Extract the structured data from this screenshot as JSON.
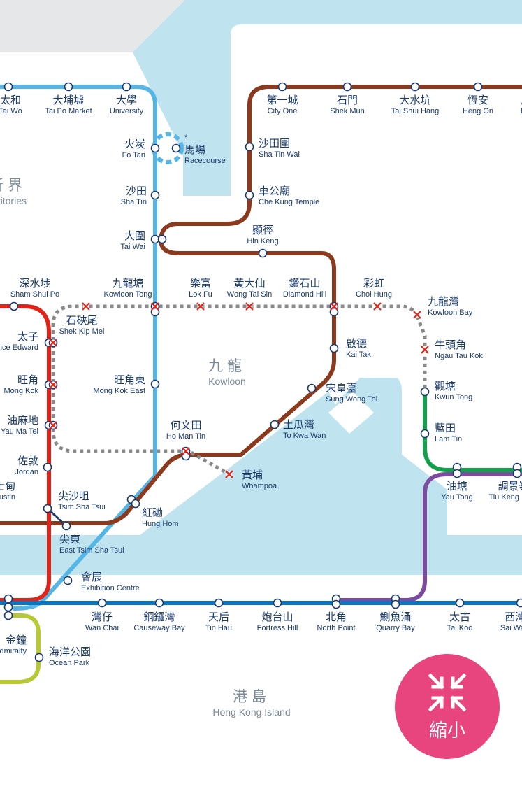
{
  "map_title": "",
  "colors": {
    "water": "#bfe4ef",
    "land_gray": "#e6e7e8",
    "east_rail": "#55b6e6",
    "tuen_ma": "#8b3a1e",
    "tsuen_wan": "#e2231a",
    "island": "#0a76c0",
    "kwun_tong": "#13a14b",
    "tko": "#7d4aa0",
    "south_island": "#b6c935",
    "closed_dotted": "#8a8a8a",
    "closed_mark": "#e2231a",
    "button": "#e8457f"
  },
  "districts": [
    {
      "zh": "九龍",
      "en": "Kowloon"
    },
    {
      "zh": "港島",
      "en": "Hong Kong Island"
    },
    {
      "zh": "新界",
      "en": "New Territories"
    }
  ],
  "stations": [
    {
      "zh": "太和",
      "en": "Tai Wo"
    },
    {
      "zh": "大埔墟",
      "en": "Tai Po Market"
    },
    {
      "zh": "大學",
      "en": "University"
    },
    {
      "zh": "火炭",
      "en": "Fo Tan"
    },
    {
      "zh": "馬場",
      "en": "Racecourse",
      "note": "*"
    },
    {
      "zh": "沙田",
      "en": "Sha Tin"
    },
    {
      "zh": "大圍",
      "en": "Tai Wai"
    },
    {
      "zh": "第一城",
      "en": "City One"
    },
    {
      "zh": "石門",
      "en": "Shek Mun"
    },
    {
      "zh": "大水坑",
      "en": "Tai Shui Hang"
    },
    {
      "zh": "恆安",
      "en": "Heng On"
    },
    {
      "zh": "沙田圍",
      "en": "Sha Tin Wai"
    },
    {
      "zh": "車公廟",
      "en": "Che Kung Temple"
    },
    {
      "zh": "顯徑",
      "en": "Hin Keng"
    },
    {
      "zh": "九龍塘",
      "en": "Kowloon Tong"
    },
    {
      "zh": "樂富",
      "en": "Lok Fu"
    },
    {
      "zh": "黃大仙",
      "en": "Wong Tai Sin"
    },
    {
      "zh": "鑽石山",
      "en": "Diamond Hill"
    },
    {
      "zh": "彩虹",
      "en": "Choi Hung"
    },
    {
      "zh": "九龍灣",
      "en": "Kowloon Bay"
    },
    {
      "zh": "牛頭角",
      "en": "Ngau Tau Kok"
    },
    {
      "zh": "觀塘",
      "en": "Kwun Tong"
    },
    {
      "zh": "藍田",
      "en": "Lam Tin"
    },
    {
      "zh": "油塘",
      "en": "Yau Tong"
    },
    {
      "zh": "調景嶺",
      "en": "Tiu Keng Leng"
    },
    {
      "zh": "啟德",
      "en": "Kai Tak"
    },
    {
      "zh": "宋皇臺",
      "en": "Sung Wong Toi"
    },
    {
      "zh": "土瓜灣",
      "en": "To Kwa Wan"
    },
    {
      "zh": "何文田",
      "en": "Ho Man Tin"
    },
    {
      "zh": "黃埔",
      "en": "Whampoa"
    },
    {
      "zh": "紅磡",
      "en": "Hung Hom"
    },
    {
      "zh": "尖東",
      "en": "East Tsim Sha Tsui"
    },
    {
      "zh": "會展",
      "en": "Exhibition Centre"
    },
    {
      "zh": "深水埗",
      "en": "Sham Shui Po"
    },
    {
      "zh": "太子",
      "en": "Prince Edward"
    },
    {
      "zh": "旺角",
      "en": "Mong Kok"
    },
    {
      "zh": "油麻地",
      "en": "Yau Ma Tei"
    },
    {
      "zh": "佐敦",
      "en": "Jordan"
    },
    {
      "zh": "尖沙咀",
      "en": "Tsim Sha Tsui"
    },
    {
      "zh": "石硤尾",
      "en": "Shek Kip Mei"
    },
    {
      "zh": "旺角東",
      "en": "Mong Kok East"
    },
    {
      "zh": "金鐘",
      "en": "Admiralty"
    },
    {
      "zh": "海洋公園",
      "en": "Ocean Park"
    },
    {
      "zh": "灣仔",
      "en": "Wan Chai"
    },
    {
      "zh": "銅鑼灣",
      "en": "Causeway Bay"
    },
    {
      "zh": "天后",
      "en": "Tin Hau"
    },
    {
      "zh": "炮台山",
      "en": "Fortress Hill"
    },
    {
      "zh": "北角",
      "en": "North Point"
    },
    {
      "zh": "鰂魚涌",
      "en": "Quarry Bay"
    },
    {
      "zh": "太古",
      "en": "Tai Koo"
    },
    {
      "zh": "西灣河",
      "en": "Sai Wan Ho"
    },
    {
      "zh": "柯士甸",
      "en": "Austin"
    },
    {
      "zh": "馬鞍山",
      "en": "Ma On Shan"
    }
  ],
  "zoom_button": {
    "label": "縮小",
    "icon": "collapse-arrows-icon"
  }
}
